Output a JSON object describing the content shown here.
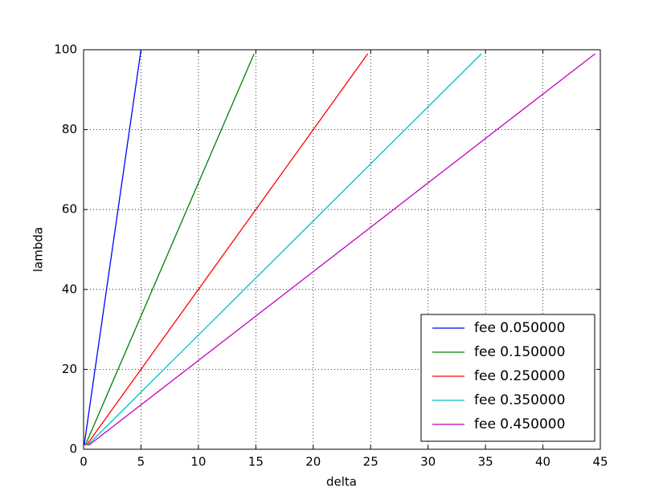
{
  "chart_data": {
    "type": "line",
    "x_label": "delta",
    "y_label": "lambda",
    "xlim": [
      0,
      45
    ],
    "ylim": [
      0,
      100
    ],
    "xticks": [
      0,
      5,
      10,
      15,
      20,
      25,
      30,
      35,
      40,
      45
    ],
    "yticks": [
      0,
      20,
      40,
      60,
      80,
      100
    ],
    "grid": true,
    "legend": "lower right",
    "series": [
      {
        "name": "fee 0.050000",
        "color": "#0000ff",
        "x": [
          0.05,
          5
        ],
        "values": [
          1,
          100
        ]
      },
      {
        "name": "fee 0.150000",
        "color": "#008000",
        "x": [
          0.15,
          14.85
        ],
        "values": [
          1,
          99
        ]
      },
      {
        "name": "fee 0.250000",
        "color": "#ff0000",
        "x": [
          0.25,
          24.75
        ],
        "values": [
          1,
          99
        ]
      },
      {
        "name": "fee 0.350000",
        "color": "#00bfbf",
        "x": [
          0.35,
          34.65
        ],
        "values": [
          1,
          99
        ]
      },
      {
        "name": "fee 0.450000",
        "color": "#bf00bf",
        "x": [
          0.45,
          44.55
        ],
        "values": [
          1,
          99
        ]
      }
    ]
  }
}
